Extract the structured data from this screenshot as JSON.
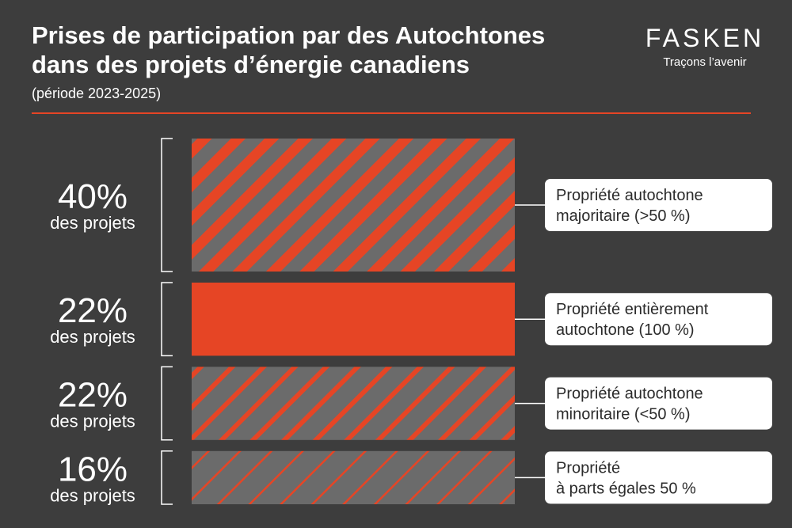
{
  "title_line1": "Prises de participation par des Autochtones",
  "title_line2": "dans des projets d’énergie canadiens",
  "subtitle": "(période 2023-2025)",
  "brand": {
    "name": "FASKEN",
    "tagline": "Traçons l’avenir"
  },
  "colors": {
    "background": "#3d3d3d",
    "accent": "#e64525",
    "stripe_base": "#6b6b6b",
    "label_box": "#ffffff"
  },
  "chart_data": {
    "type": "bar",
    "unit": "%",
    "categories": [
      "Propriété autochtone majoritaire (>50 %)",
      "Propriété entièrement autochtone (100 %)",
      "Propriété autochtone minoritaire (<50 %)",
      "Propriété à parts égales 50 %"
    ],
    "values": [
      40,
      22,
      22,
      16
    ],
    "value_labels": [
      "40%",
      "22%",
      "22%",
      "16%"
    ],
    "value_sublabel": "des projets",
    "category_label_lines": [
      [
        "Propriété autochtone",
        "majoritaire (>50 %)"
      ],
      [
        "Propriété entièrement",
        "autochtone (100 %)"
      ],
      [
        "Propriété autochtone",
        "minoritaire (<50 %)"
      ],
      [
        "Propriété",
        "à parts égales 50 %"
      ]
    ],
    "fill_styles": [
      "wide-stripes",
      "solid",
      "medium-stripes",
      "thin-stripes"
    ]
  }
}
